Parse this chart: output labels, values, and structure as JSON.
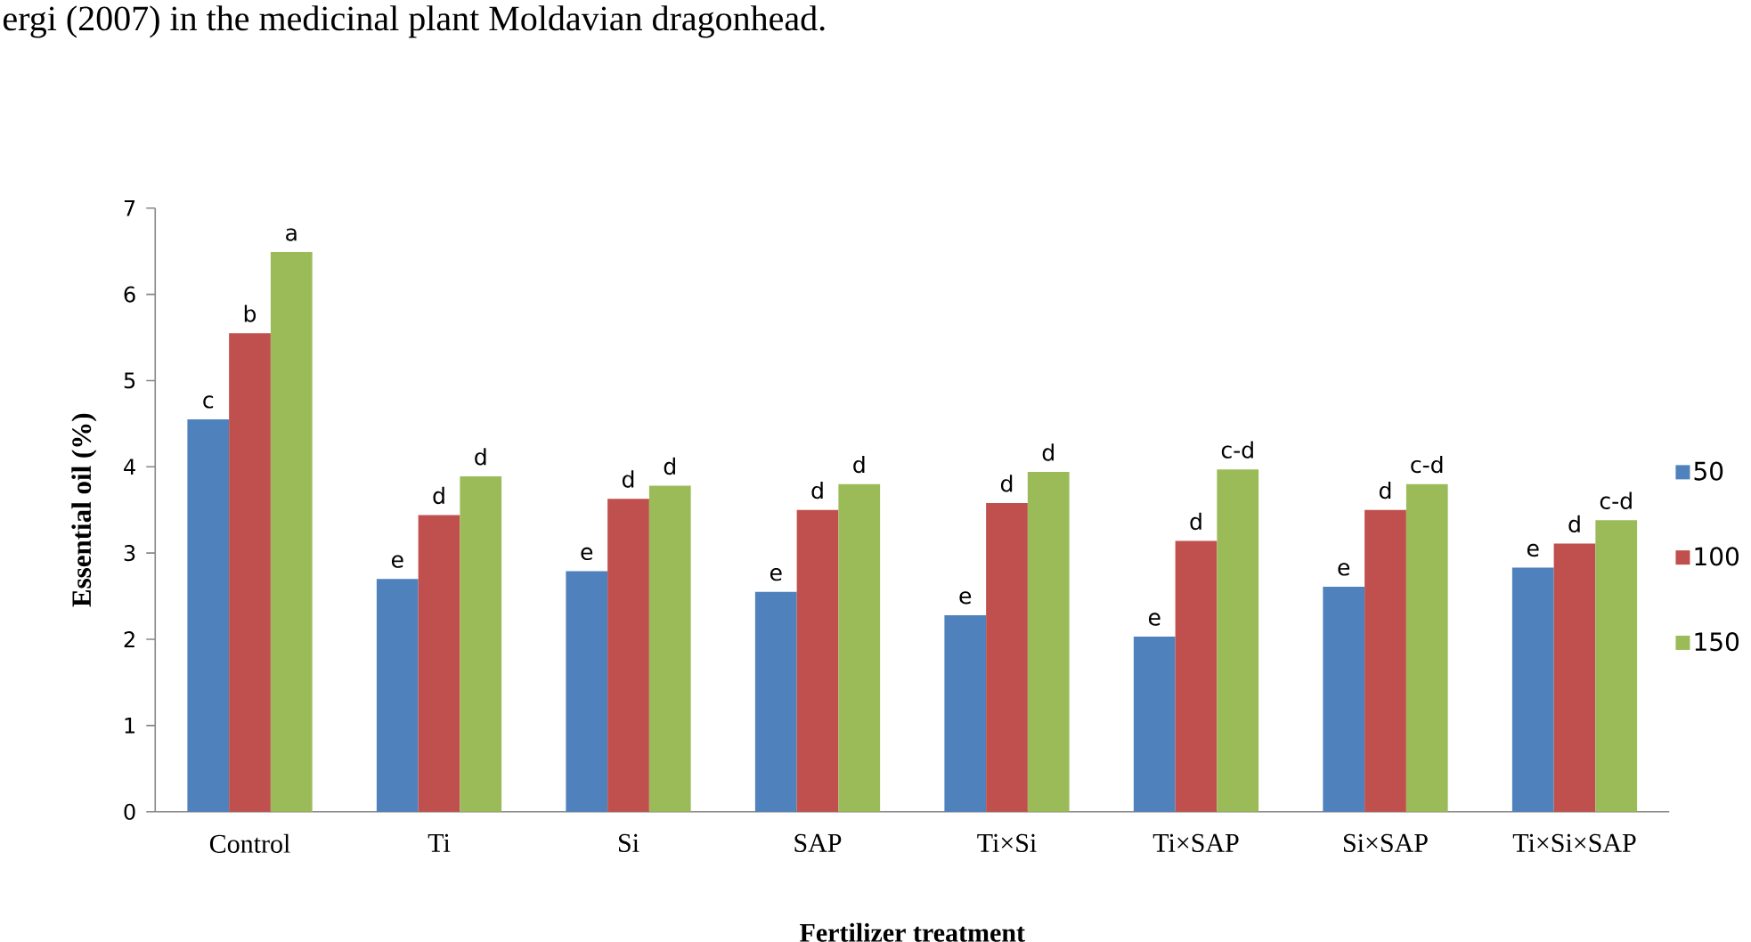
{
  "chart_data": {
    "type": "bar",
    "xlabel": "Fertilizer treatment",
    "ylabel": "Essential oil (%)",
    "annotations": [
      "ergi (2007) in the medicinal plant Moldavian dragonhead."
    ],
    "categories": [
      "Control",
      "Ti",
      "Si",
      "SAP",
      "Ti×Si",
      "Ti×SAP",
      "Si×SAP",
      "Ti×Si×SAP"
    ],
    "series": [
      {
        "name": "50",
        "color": "#4f81bd",
        "values": [
          4.55,
          2.7,
          2.79,
          2.55,
          2.28,
          2.03,
          2.61,
          2.83
        ],
        "value_labels": [
          "c",
          "e",
          "e",
          "e",
          "e",
          "e",
          "e",
          "e"
        ]
      },
      {
        "name": "100",
        "color": "#c0504d",
        "values": [
          5.55,
          3.44,
          3.63,
          3.5,
          3.58,
          3.14,
          3.5,
          3.11
        ],
        "value_labels": [
          "b",
          "d",
          "d",
          "d",
          "d",
          "d",
          "d",
          "d"
        ]
      },
      {
        "name": "150",
        "color": "#9bbb59",
        "values": [
          6.49,
          3.89,
          3.78,
          3.8,
          3.94,
          3.97,
          3.8,
          3.38
        ],
        "value_labels": [
          "a",
          "d",
          "d",
          "d",
          "d",
          "c-d",
          "c-d",
          "c-d"
        ]
      }
    ],
    "ylim": [
      0,
      7
    ],
    "yticks": [
      0,
      1,
      2,
      3,
      4,
      5,
      6,
      7
    ],
    "legend": "right"
  }
}
